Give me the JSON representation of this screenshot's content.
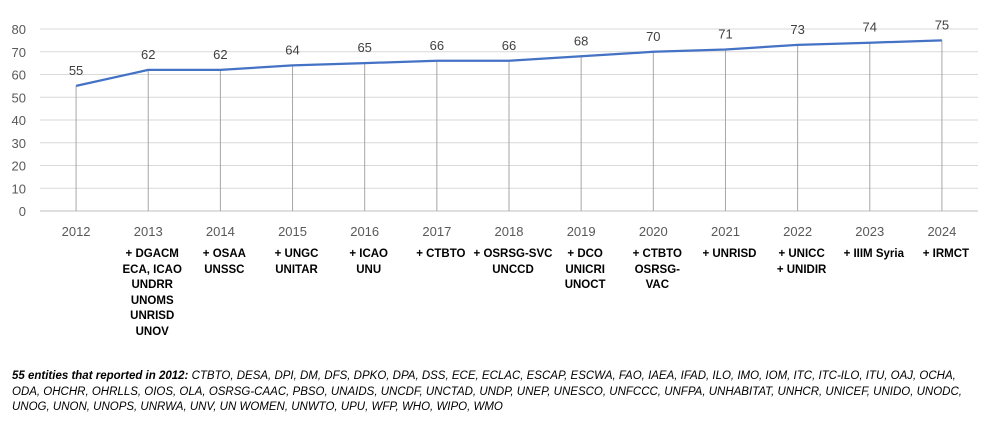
{
  "chart_data": {
    "type": "line",
    "categories": [
      "2012",
      "2013",
      "2014",
      "2015",
      "2016",
      "2017",
      "2018",
      "2019",
      "2020",
      "2021",
      "2022",
      "2023",
      "2024"
    ],
    "series": [
      {
        "values": [
          55,
          62,
          62,
          64,
          65,
          66,
          66,
          68,
          70,
          71,
          73,
          74,
          75
        ]
      }
    ],
    "ylim": [
      0,
      80
    ],
    "yticks": [
      0,
      10,
      20,
      30,
      40,
      50,
      60,
      70,
      80
    ],
    "grid": true,
    "line_color": "#4472C4",
    "title": "",
    "xlabel": "",
    "ylabel": ""
  },
  "additions": [
    [],
    [
      "+ DGACM",
      "ECA, ICAO",
      "UNDRR",
      "UNOMS",
      "UNRISD",
      "UNOV"
    ],
    [
      "+ OSAA",
      "UNSSC"
    ],
    [
      "+ UNGC",
      "UNITAR"
    ],
    [
      "+ ICAO",
      "UNU"
    ],
    [
      "+ CTBTO"
    ],
    [
      "+ OSRSG-SVC",
      "UNCCD"
    ],
    [
      "+ DCO",
      "UNICRI",
      "UNOCT"
    ],
    [
      "+ CTBTO",
      "OSRSG-",
      "VAC"
    ],
    [
      "+ UNRISD"
    ],
    [
      "+ UNICC",
      "+ UNIDIR"
    ],
    [
      "+ IIIM Syria"
    ],
    [
      "+ IRMCT"
    ]
  ],
  "footnote": {
    "lead": "55 entities that reported in 2012:",
    "text": " CTBTO, DESA, DPI, DM, DFS, DPKO, DPA, DSS, ECE, ECLAC, ESCAP, ESCWA, FAO, IAEA, IFAD, ILO, IMO, IOM, ITC, ITC-ILO, ITU, OAJ, OCHA, ODA, OHCHR, OHRLLS, OIOS, OLA, OSRSG-CAAC, PBSO, UNAIDS, UNCDF, UNCTAD, UNDP, UNEP, UNESCO, UNFCCC, UNFPA, UNHABITAT, UNHCR, UNICEF, UNIDO, UNODC, UNOG, UNON, UNOPS, UNRWA, UNV, UN WOMEN, UNWTO, UPU, WFP, WHO, WIPO, WMO"
  }
}
